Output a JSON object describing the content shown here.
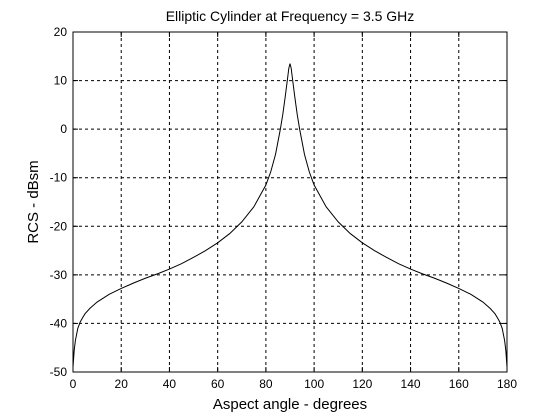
{
  "chart_data": {
    "type": "line",
    "title": "Elliptic  Cylinder  at Frequency = 3.5  GHz",
    "xlabel": "Aspect angle - degrees",
    "ylabel": "RCS - dBsm",
    "xlim": [
      0,
      180
    ],
    "ylim": [
      -50,
      20
    ],
    "xticks": [
      "0",
      "20",
      "40",
      "60",
      "80",
      "100",
      "120",
      "140",
      "160",
      "180"
    ],
    "yticks": [
      "-50",
      "-40",
      "-30",
      "-20",
      "-10",
      "0",
      "10",
      "20"
    ],
    "grid": true,
    "grid_style": "dashed",
    "line_color": "#000000",
    "series": [
      {
        "x": [
          0,
          0.5,
          1,
          2,
          3,
          4,
          5,
          7,
          10,
          15,
          20,
          25,
          30,
          35,
          40,
          45,
          50,
          55,
          60,
          65,
          70,
          75,
          80,
          82,
          84,
          86,
          87,
          88,
          89,
          89.5,
          90,
          90.5,
          91,
          92,
          93,
          94,
          96,
          98,
          100,
          105,
          110,
          115,
          120,
          125,
          130,
          135,
          140,
          145,
          150,
          155,
          160,
          165,
          170,
          173,
          175,
          176,
          177,
          178,
          179,
          179.5,
          180
        ],
        "values": [
          -49,
          -45.5,
          -43.5,
          -41,
          -39.7,
          -38.8,
          -38,
          -36.9,
          -35.6,
          -34,
          -32.8,
          -31.7,
          -30.7,
          -29.8,
          -28.8,
          -27.7,
          -26.4,
          -25,
          -23.4,
          -21.5,
          -19.1,
          -16,
          -11.5,
          -8.8,
          -5.2,
          0,
          3,
          6.6,
          10.5,
          12.5,
          13.5,
          12.5,
          10.5,
          6.6,
          3,
          0,
          -5.2,
          -8.8,
          -11.5,
          -16,
          -19.1,
          -21.5,
          -23.4,
          -25,
          -26.4,
          -27.7,
          -28.8,
          -29.8,
          -30.7,
          -31.7,
          -32.8,
          -34,
          -35.6,
          -36.9,
          -38,
          -38.8,
          -39.7,
          -41,
          -43.5,
          -45.5,
          -49
        ]
      }
    ]
  }
}
